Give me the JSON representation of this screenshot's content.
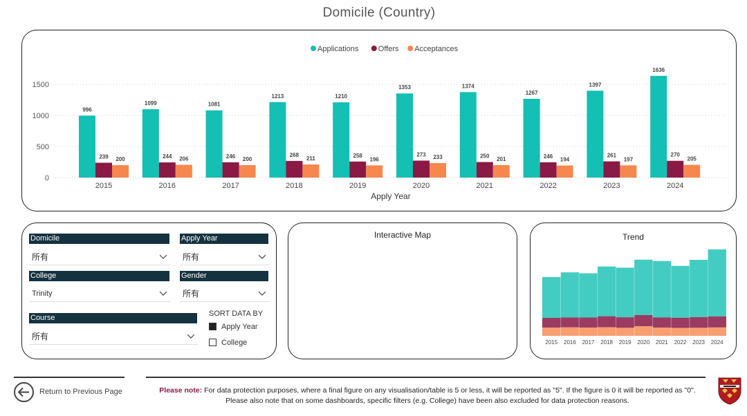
{
  "page": {
    "title": "Domicile (Country)"
  },
  "colors": {
    "applications": "#14bfb3",
    "offers": "#8a1945",
    "acceptances": "#f6874f",
    "label_bg": "#15323f",
    "note_accent": "#8b1a47"
  },
  "chart_data": {
    "type": "bar",
    "title": "",
    "xlabel": "Apply Year",
    "ylabel": "",
    "ylim": [
      0,
      1800
    ],
    "yticks": [
      0,
      500,
      1000,
      1500
    ],
    "grid": true,
    "legend": "top-center",
    "categories": [
      "2015",
      "2016",
      "2017",
      "2018",
      "2019",
      "2020",
      "2021",
      "2022",
      "2023",
      "2024"
    ],
    "series": [
      {
        "name": "Applications",
        "color": "#14bfb3",
        "values": [
          996,
          1099,
          1081,
          1213,
          1210,
          1353,
          1374,
          1267,
          1397,
          1636
        ]
      },
      {
        "name": "Offers",
        "color": "#8a1945",
        "values": [
          239,
          244,
          246,
          268,
          258,
          273,
          250,
          246,
          261,
          270
        ]
      },
      {
        "name": "Acceptances",
        "color": "#f6874f",
        "values": [
          200,
          206,
          200,
          211,
          196,
          233,
          201,
          194,
          197,
          205
        ]
      }
    ]
  },
  "filters": {
    "domicile": {
      "label": "Domicile",
      "value": "所有"
    },
    "apply_year": {
      "label": "Apply Year",
      "value": "所有"
    },
    "college": {
      "label": "College",
      "value": "Trinity"
    },
    "gender": {
      "label": "Gender",
      "value": "所有"
    },
    "course": {
      "label": "Course",
      "value": "所有"
    }
  },
  "sort": {
    "title": "SORT DATA BY",
    "options": [
      {
        "label": "Apply Year",
        "checked": true
      },
      {
        "label": "College",
        "checked": false
      }
    ]
  },
  "map": {
    "title": "Interactive Map"
  },
  "trend": {
    "title": "Trend"
  },
  "footer": {
    "back_label": "Return to Previous Page",
    "note_prefix": "Please note:",
    "note_line1": "For data protection purposes, where a final figure on any visualisation/table is 5 or less, it will be reported as \"5\". If the figure is 0 it will be reported as \"0\".",
    "note_line2": "Please also note that on some dashboards, specific filters (e.g. College) have been also excluded for data protection reasons."
  }
}
